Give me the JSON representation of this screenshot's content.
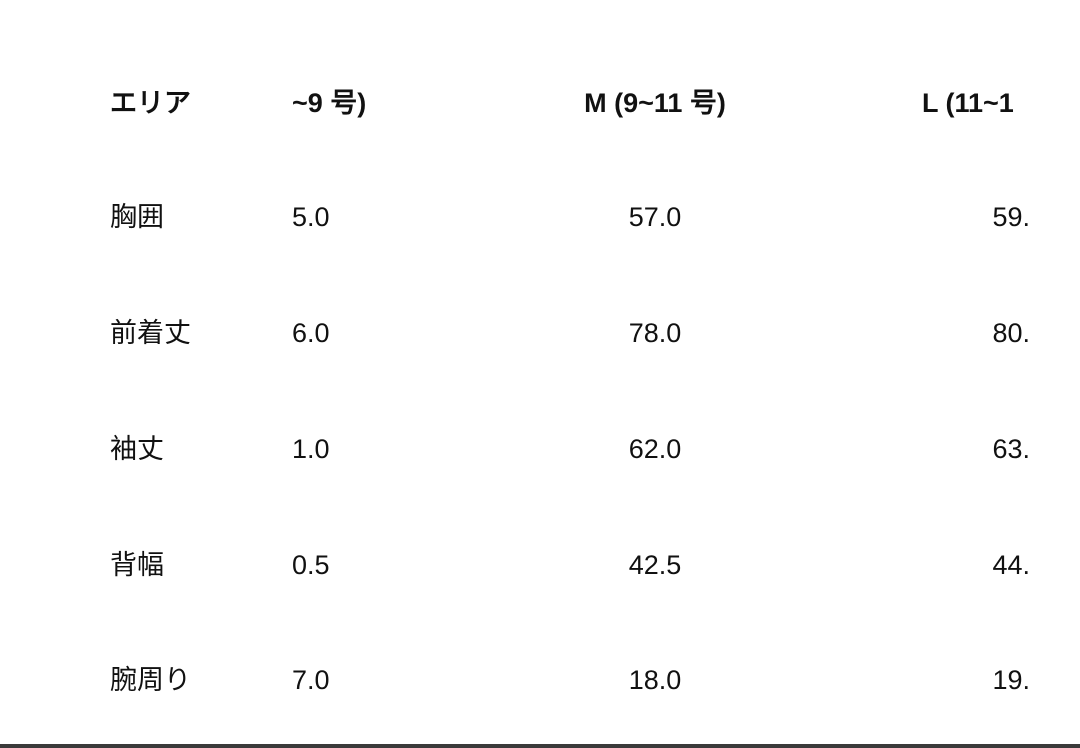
{
  "table": {
    "headers": [
      "エリア",
      "~9 号)",
      "M (9~11 号)",
      "L (11~1"
    ],
    "rows": [
      [
        "胸囲",
        "5.0",
        "57.0",
        "59."
      ],
      [
        "前着丈",
        "6.0",
        "78.0",
        "80."
      ],
      [
        "袖丈",
        "1.0",
        "62.0",
        "63."
      ],
      [
        "背幅",
        "0.5",
        "42.5",
        "44."
      ],
      [
        "腕周り",
        "7.0",
        "18.0",
        "19."
      ]
    ]
  }
}
